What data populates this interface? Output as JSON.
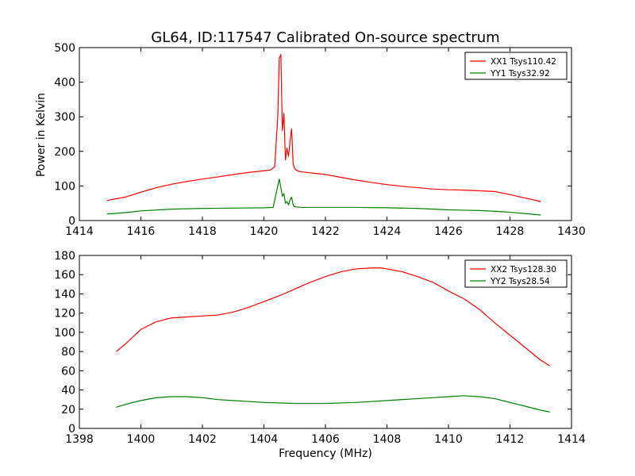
{
  "figure": {
    "title": "GL64, ID:117547 Calibrated On-source spectrum",
    "xlabel": "Frequency (MHz)",
    "ylabel": "Power in Kelvin"
  },
  "colors": {
    "red": "#ff0000",
    "green": "#008000"
  },
  "chart_data": [
    {
      "type": "line",
      "xlim": [
        1414,
        1430
      ],
      "ylim": [
        0,
        500
      ],
      "xticks": [
        1414,
        1416,
        1418,
        1420,
        1422,
        1424,
        1426,
        1428,
        1430
      ],
      "yticks": [
        0,
        100,
        200,
        300,
        400,
        500
      ],
      "legend_position": "top-right",
      "series": [
        {
          "name": "XX1 Tsys110.42",
          "color": "#ff0000",
          "x": [
            1414.9,
            1415.5,
            1416,
            1416.5,
            1417,
            1417.5,
            1418,
            1418.5,
            1419,
            1419.5,
            1420,
            1420.2,
            1420.35,
            1420.45,
            1420.5,
            1420.55,
            1420.6,
            1420.65,
            1420.7,
            1420.75,
            1420.8,
            1420.85,
            1420.9,
            1420.95,
            1421.0,
            1421.1,
            1421.3,
            1422,
            1422.5,
            1423,
            1423.5,
            1424,
            1424.5,
            1425,
            1425.5,
            1426,
            1426.5,
            1427,
            1427.5,
            1428,
            1428.5,
            1429
          ],
          "y": [
            58,
            68,
            82,
            95,
            105,
            113,
            120,
            126,
            133,
            139,
            144,
            146,
            155,
            300,
            470,
            480,
            260,
            310,
            175,
            210,
            185,
            230,
            265,
            165,
            150,
            143,
            140,
            133,
            125,
            117,
            110,
            104,
            99,
            95,
            91,
            89,
            88,
            86,
            84,
            75,
            65,
            55
          ]
        },
        {
          "name": "YY1 Tsys32.92",
          "color": "#008000",
          "x": [
            1414.9,
            1415.5,
            1416,
            1417,
            1418,
            1419,
            1420,
            1420.3,
            1420.45,
            1420.5,
            1420.55,
            1420.6,
            1420.65,
            1420.7,
            1420.75,
            1420.8,
            1420.85,
            1420.9,
            1420.95,
            1421.0,
            1421.2,
            1422,
            1423,
            1424,
            1425,
            1426,
            1426.5,
            1427,
            1427.5,
            1428,
            1428.5,
            1429
          ],
          "y": [
            19,
            23,
            28,
            33,
            35,
            36,
            37,
            38,
            100,
            120,
            95,
            70,
            78,
            50,
            55,
            45,
            60,
            68,
            45,
            40,
            38,
            38,
            38,
            37,
            35,
            31,
            30,
            29,
            27,
            24,
            20,
            16
          ]
        }
      ]
    },
    {
      "type": "line",
      "xlim": [
        1398,
        1414
      ],
      "ylim": [
        0,
        180
      ],
      "xticks": [
        1398,
        1400,
        1402,
        1404,
        1406,
        1408,
        1410,
        1412,
        1414
      ],
      "yticks": [
        0,
        20,
        40,
        60,
        80,
        100,
        120,
        140,
        160,
        180
      ],
      "legend_position": "top-right",
      "series": [
        {
          "name": "XX2 Tsys128.30",
          "color": "#ff0000",
          "x": [
            1399.2,
            1399.5,
            1400,
            1400.5,
            1401,
            1401.5,
            1402,
            1402.5,
            1403,
            1403.5,
            1404,
            1404.5,
            1405,
            1405.5,
            1406,
            1406.5,
            1407,
            1407.5,
            1407.8,
            1408,
            1408.5,
            1409,
            1409.5,
            1410,
            1410.5,
            1411,
            1411.5,
            1412,
            1412.5,
            1413,
            1413.3
          ],
          "y": [
            80,
            88,
            103,
            111,
            115,
            116,
            117,
            118,
            121,
            126,
            132,
            138,
            145,
            152,
            158,
            163,
            166,
            167,
            167,
            166,
            163,
            158,
            152,
            143,
            135,
            124,
            110,
            97,
            84,
            71,
            65
          ]
        },
        {
          "name": "YY2 Tsys28.54",
          "color": "#008000",
          "x": [
            1399.2,
            1399.5,
            1400,
            1400.5,
            1401,
            1401.5,
            1402,
            1402.5,
            1403,
            1404,
            1405,
            1406,
            1407,
            1408,
            1409,
            1410,
            1410.5,
            1411,
            1411.5,
            1412,
            1412.5,
            1413,
            1413.3
          ],
          "y": [
            22,
            25,
            29,
            32,
            33,
            33,
            32,
            30,
            29,
            27,
            26,
            26,
            27,
            29,
            31,
            33,
            34,
            33,
            31,
            27,
            23,
            19,
            17
          ]
        }
      ]
    }
  ]
}
